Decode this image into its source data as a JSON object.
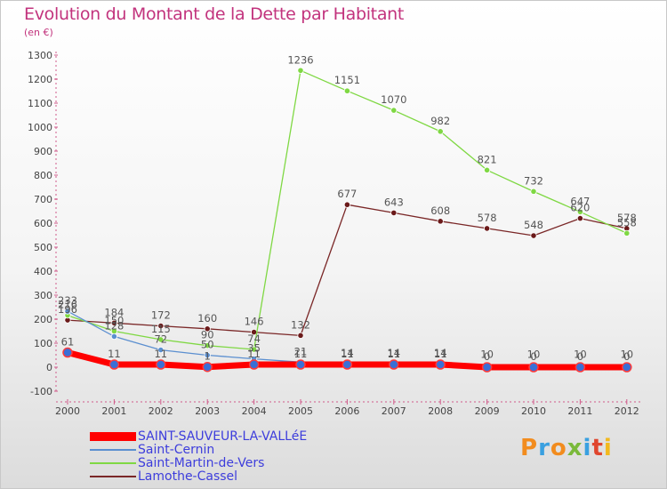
{
  "header": {
    "title": "Evolution du Montant de la Dette par Habitant",
    "subtitle": "(en €)"
  },
  "colors": {
    "title": "#c2337d",
    "axis_text": "#444444",
    "legend_text": "#3d3ddc"
  },
  "chart_data": {
    "type": "line",
    "title": "Evolution du Montant de la Dette par Habitant",
    "subtitle": "(en €)",
    "xlabel": "",
    "ylabel": "",
    "x": [
      "2000",
      "2001",
      "2002",
      "2003",
      "2004",
      "2005",
      "2006",
      "2007",
      "2008",
      "2009",
      "2010",
      "2011",
      "2012"
    ],
    "y_ticks": [
      "-100",
      "0",
      "100",
      "200",
      "300",
      "400",
      "500",
      "600",
      "700",
      "800",
      "900",
      "1000",
      "1100",
      "1200",
      "1300"
    ],
    "ylim": [
      -100,
      1300
    ],
    "grid": false,
    "legend_position": "bottom-left",
    "series": [
      {
        "name": "SAINT-SAUVEUR-LA-VALLéE",
        "color": "#ff0000",
        "marker": "#3a6fd6",
        "thick": true,
        "values": [
          61,
          11,
          11,
          1,
          11,
          11,
          11,
          11,
          11,
          0,
          0,
          0,
          0
        ],
        "labels": [
          "61",
          "11",
          "11",
          "1",
          "11",
          "11",
          "11",
          "11",
          "11",
          "0",
          "0",
          "0",
          "0"
        ]
      },
      {
        "name": "Saint-Cernin",
        "color": "#5b8fd0",
        "marker": "#5b8fd0",
        "thick": false,
        "values": [
          233,
          128,
          72,
          50,
          35,
          21,
          14,
          14,
          14,
          10,
          10,
          10,
          10
        ],
        "labels": [
          "233",
          "128",
          "72",
          "50",
          "35",
          "21",
          "14",
          "14",
          "14",
          "10",
          "10",
          "10",
          "10"
        ]
      },
      {
        "name": "Saint-Martin-de-Vers",
        "color": "#7fd843",
        "marker": "#7fd843",
        "thick": false,
        "values": [
          216,
          150,
          115,
          90,
          74,
          1236,
          1151,
          1070,
          982,
          821,
          732,
          647,
          558
        ],
        "labels": [
          "216",
          "150",
          "115",
          "90",
          "74",
          "1236",
          "1151",
          "1070",
          "982",
          "821",
          "732",
          "647",
          "558"
        ]
      },
      {
        "name": "Lamothe-Cassel",
        "color": "#7a2727",
        "marker": "#6b1a1a",
        "thick": false,
        "values": [
          196,
          184,
          172,
          160,
          146,
          132,
          677,
          643,
          608,
          578,
          548,
          620,
          578
        ],
        "labels": [
          "196",
          "184",
          "172",
          "160",
          "146",
          "132",
          "677",
          "643",
          "608",
          "578",
          "548",
          "620",
          "578"
        ]
      }
    ]
  },
  "logo": {
    "text": [
      "P",
      "r",
      "o",
      "x",
      "i",
      "t",
      "i"
    ],
    "colors": [
      "#f28c1e",
      "#3aa0e0",
      "#f28c1e",
      "#7ab93a",
      "#3aa0e0",
      "#e0462e",
      "#f2b91e"
    ]
  }
}
